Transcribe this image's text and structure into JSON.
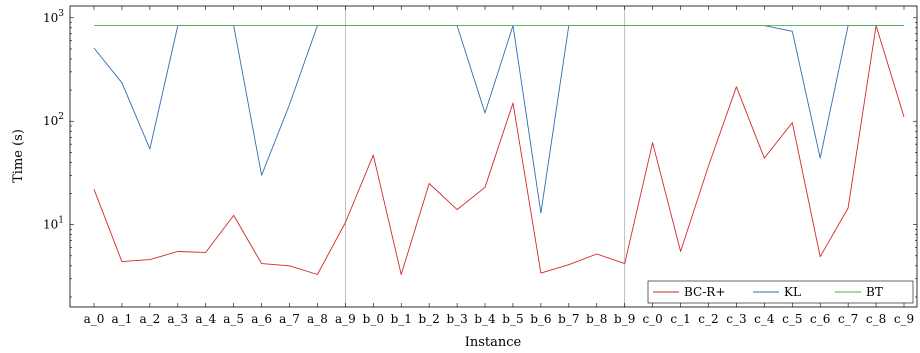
{
  "chart_data": {
    "type": "line",
    "title": "",
    "xlabel": "Instance",
    "ylabel": "Time (s)",
    "yscale": "log",
    "ylim": [
      1.6,
      1300
    ],
    "yticks": [
      {
        "value": 10,
        "base": "10",
        "exp": "1"
      },
      {
        "value": 100,
        "base": "10",
        "exp": "2"
      },
      {
        "value": 1000,
        "base": "10",
        "exp": "3"
      }
    ],
    "group_separators_after": [
      "a_9",
      "b_9"
    ],
    "legend_position": "bottom-right",
    "categories": [
      "a_0",
      "a_1",
      "a_2",
      "a_3",
      "a_4",
      "a_5",
      "a_6",
      "a_7",
      "a_8",
      "a_9",
      "b_0",
      "b_1",
      "b_2",
      "b_3",
      "b_4",
      "b_5",
      "b_6",
      "b_7",
      "b_8",
      "b_9",
      "c_0",
      "c_1",
      "c_2",
      "c_3",
      "c_4",
      "c_5",
      "c_6",
      "c_7",
      "c_8",
      "c_9"
    ],
    "series": [
      {
        "name": "BC-R+",
        "color": "#d62728",
        "values": [
          22,
          4.4,
          4.6,
          5.5,
          5.4,
          12.3,
          4.2,
          4.0,
          3.3,
          10.5,
          47,
          3.3,
          25,
          14,
          23,
          150,
          3.4,
          4.1,
          5.2,
          4.2,
          62,
          5.5,
          37,
          215,
          44,
          97,
          4.9,
          14.5,
          840,
          110
        ]
      },
      {
        "name": "KL",
        "color": "#2f6eb5",
        "values": [
          510,
          235,
          54,
          840,
          840,
          840,
          30,
          145,
          840,
          840,
          840,
          840,
          840,
          840,
          120,
          840,
          13,
          840,
          840,
          840,
          840,
          840,
          840,
          840,
          840,
          740,
          44,
          840,
          840,
          840
        ]
      },
      {
        "name": "BT",
        "color": "#4caf50",
        "values": [
          840,
          840,
          840,
          840,
          840,
          840,
          840,
          840,
          840,
          840,
          840,
          840,
          840,
          840,
          840,
          840,
          840,
          840,
          840,
          840,
          840,
          840,
          840,
          840,
          840,
          840,
          840,
          840,
          840,
          840
        ]
      }
    ]
  }
}
